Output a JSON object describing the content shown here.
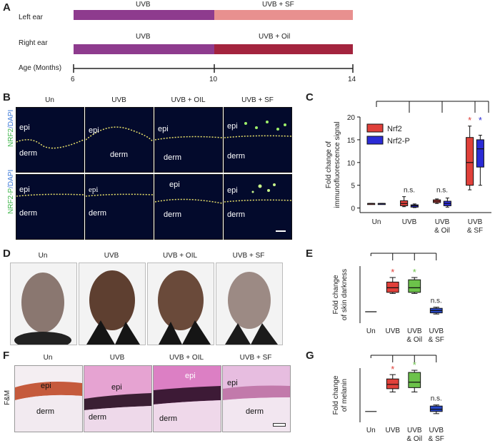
{
  "panels": {
    "A": "A",
    "B": "B",
    "C": "C",
    "D": "D",
    "E": "E",
    "F": "F",
    "G": "G"
  },
  "timeline": {
    "rows": [
      {
        "label": "Left ear",
        "seg1": "UVB",
        "seg2": "UVB + SF",
        "color1": "#8e3b8e",
        "color2": "#e8908f"
      },
      {
        "label": "Right ear",
        "seg1": "UVB",
        "seg2": "UVB + Oil",
        "color1": "#8e3b8e",
        "color2": "#a3243e"
      }
    ],
    "axis_label": "Age (Months)",
    "ticks": [
      "6",
      "10",
      "14"
    ]
  },
  "panel_b": {
    "columns": [
      "Un",
      "UVB",
      "UVB + OIL",
      "UVB + SF"
    ],
    "row_labels": [
      {
        "part1": "NRF2",
        "part2": "/DAPI"
      },
      {
        "part1": "NRF2-P",
        "part2": "/DAPI"
      }
    ],
    "epi": "epi",
    "derm": "derm"
  },
  "panel_c": {
    "ylabel": "Fold change of immunofluorescence signal",
    "legend": [
      "Nrf2",
      "Nrf2-P"
    ],
    "categories": [
      "Un",
      "UVB",
      "UVB & Oil",
      "UVB & SF"
    ],
    "ns": "n.s.",
    "star": "*"
  },
  "panel_d": {
    "columns": [
      "Un",
      "UVB",
      "UVB + OIL",
      "UVB + SF"
    ]
  },
  "panel_e": {
    "ylabel": "Fold change of skin darkness",
    "categories": [
      "Un",
      "UVB",
      "UVB & Oil",
      "UVB & SF"
    ],
    "ns": "n.s.",
    "star": "*"
  },
  "panel_f": {
    "columns": [
      "Un",
      "UVB",
      "UVB + OIL",
      "UVB + SF"
    ],
    "row_label": "F&M",
    "epi": "epi",
    "derm": "derm"
  },
  "panel_g": {
    "ylabel": "Fold change of melanin",
    "categories": [
      "Un",
      "UVB",
      "UVB & Oil",
      "UVB & SF"
    ],
    "ns": "n.s.",
    "star": "*"
  },
  "colors": {
    "red": "#e0403a",
    "blue": "#2b2bd6",
    "green": "#6cc24a",
    "navy": "#2747c6"
  },
  "chart_data": [
    {
      "id": "C",
      "type": "box",
      "categories": [
        "Un",
        "UVB",
        "UVB & Oil",
        "UVB & SF"
      ],
      "ylabel": "Fold change of immunofluorescence signal",
      "ylim": [
        -1,
        20
      ],
      "yticks": [
        0,
        5,
        10,
        15,
        20
      ],
      "series": [
        {
          "name": "Nrf2",
          "boxes": [
            [
              1,
              1,
              1,
              1,
              1
            ],
            [
              0.3,
              0.5,
              1,
              1.6,
              2.5
            ],
            [
              1,
              1.2,
              1.5,
              1.8,
              2
            ],
            [
              4,
              5,
              10,
              15.5,
              18
            ]
          ]
        },
        {
          "name": "Nrf2-P",
          "boxes": [
            [
              1,
              1,
              1,
              1,
              1
            ],
            [
              0.1,
              0.2,
              0.5,
              0.7,
              0.9
            ],
            [
              0.2,
              0.5,
              1,
              1.5,
              2.2
            ],
            [
              5,
              9,
              13,
              15,
              16
            ]
          ]
        }
      ]
    },
    {
      "id": "E",
      "type": "box",
      "categories": [
        "Un",
        "UVB",
        "UVB & Oil",
        "UVB & SF"
      ],
      "ylabel": "Fold change of skin darkness",
      "boxes": [
        [
          1,
          1,
          1,
          1,
          1
        ],
        [
          1.8,
          1.85,
          2.05,
          2.3,
          2.5
        ],
        [
          1.8,
          1.85,
          2.05,
          2.4,
          2.5
        ],
        [
          0.9,
          0.95,
          1.05,
          1.15,
          1.2
        ]
      ]
    },
    {
      "id": "G",
      "type": "box",
      "categories": [
        "Un",
        "UVB",
        "UVB & Oil",
        "UVB & SF"
      ],
      "ylabel": "Fold change of melanin",
      "boxes": [
        [
          1,
          1,
          1,
          1,
          1
        ],
        [
          1.9,
          2.05,
          2.25,
          2.5,
          2.7
        ],
        [
          1.9,
          2.1,
          2.35,
          2.8,
          2.9
        ],
        [
          0.9,
          1,
          1.1,
          1.25,
          1.3
        ]
      ]
    }
  ]
}
